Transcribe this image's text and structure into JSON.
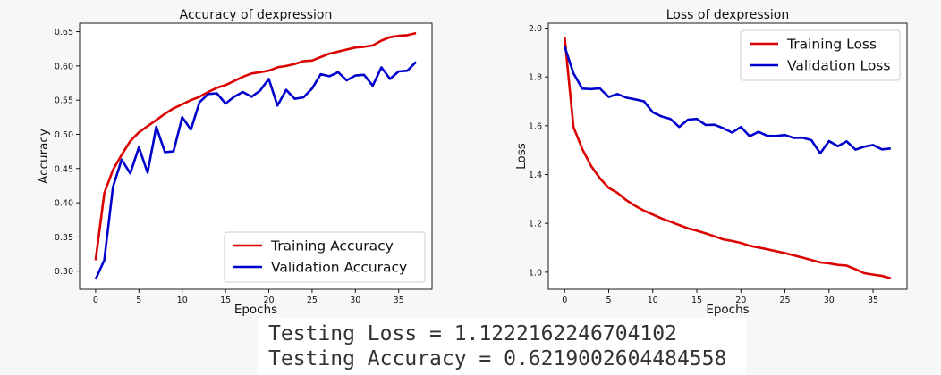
{
  "chart_data": [
    {
      "type": "line",
      "title": "Accuracy of dexpression",
      "xlabel": "Epochs",
      "ylabel": "Accuracy",
      "xlim": [
        -1.85,
        38.85
      ],
      "ylim": [
        0.2735,
        0.6625
      ],
      "x_ticks": [
        0,
        5,
        10,
        15,
        20,
        25,
        30,
        35
      ],
      "y_ticks": [
        0.3,
        0.35,
        0.4,
        0.45,
        0.5,
        0.55,
        0.6,
        0.65
      ],
      "y_tick_labels": [
        "0.30",
        "0.35",
        "0.40",
        "0.45",
        "0.50",
        "0.55",
        "0.60",
        "0.65"
      ],
      "grid": false,
      "legend_position": "lower-right",
      "x": [
        0,
        1,
        2,
        3,
        4,
        5,
        6,
        7,
        8,
        9,
        10,
        11,
        12,
        13,
        14,
        15,
        16,
        17,
        18,
        19,
        20,
        21,
        22,
        23,
        24,
        25,
        26,
        27,
        28,
        29,
        30,
        31,
        32,
        33,
        34,
        35,
        36,
        37
      ],
      "series": [
        {
          "name": "Training Accuracy",
          "color": "#dd0000",
          "values": [
            0.316,
            0.414,
            0.448,
            0.47,
            0.49,
            0.503,
            0.512,
            0.521,
            0.53,
            0.538,
            0.544,
            0.55,
            0.555,
            0.562,
            0.568,
            0.572,
            0.578,
            0.584,
            0.589,
            0.591,
            0.593,
            0.598,
            0.6,
            0.603,
            0.607,
            0.608,
            0.613,
            0.618,
            0.621,
            0.624,
            0.627,
            0.628,
            0.63,
            0.637,
            0.642,
            0.644,
            0.645,
            0.648
          ]
        },
        {
          "name": "Validation Accuracy",
          "color": "#0000cc",
          "values": [
            0.288,
            0.316,
            0.423,
            0.463,
            0.443,
            0.481,
            0.444,
            0.511,
            0.474,
            0.475,
            0.525,
            0.507,
            0.547,
            0.559,
            0.56,
            0.545,
            0.555,
            0.562,
            0.555,
            0.564,
            0.581,
            0.542,
            0.565,
            0.552,
            0.554,
            0.567,
            0.588,
            0.585,
            0.591,
            0.579,
            0.586,
            0.587,
            0.571,
            0.598,
            0.581,
            0.592,
            0.593,
            0.606
          ]
        }
      ]
    },
    {
      "type": "line",
      "title": "Loss of dexpression",
      "xlabel": "Epochs",
      "ylabel": "Loss",
      "xlim": [
        -1.85,
        38.85
      ],
      "ylim": [
        0.93,
        2.02
      ],
      "x_ticks": [
        0,
        5,
        10,
        15,
        20,
        25,
        30,
        35
      ],
      "y_ticks": [
        1.0,
        1.2,
        1.4,
        1.6,
        1.8,
        2.0
      ],
      "y_tick_labels": [
        "1.0",
        "1.2",
        "1.4",
        "1.6",
        "1.8",
        "2.0"
      ],
      "grid": false,
      "legend_position": "upper-right",
      "x": [
        0,
        1,
        2,
        3,
        4,
        5,
        6,
        7,
        8,
        9,
        10,
        11,
        12,
        13,
        14,
        15,
        16,
        17,
        18,
        19,
        20,
        21,
        22,
        23,
        24,
        25,
        26,
        27,
        28,
        29,
        30,
        31,
        32,
        33,
        34,
        35,
        36,
        37
      ],
      "series": [
        {
          "name": "Training Loss",
          "color": "#dd0000",
          "values": [
            1.965,
            1.595,
            1.505,
            1.435,
            1.385,
            1.345,
            1.325,
            1.295,
            1.272,
            1.252,
            1.236,
            1.22,
            1.207,
            1.193,
            1.18,
            1.17,
            1.159,
            1.147,
            1.134,
            1.128,
            1.12,
            1.108,
            1.101,
            1.094,
            1.086,
            1.078,
            1.069,
            1.06,
            1.05,
            1.04,
            1.036,
            1.03,
            1.027,
            1.012,
            0.996,
            0.99,
            0.985,
            0.975
          ]
        },
        {
          "name": "Validation Loss",
          "color": "#0000cc",
          "values": [
            1.925,
            1.815,
            1.752,
            1.75,
            1.753,
            1.718,
            1.73,
            1.715,
            1.708,
            1.7,
            1.655,
            1.638,
            1.628,
            1.595,
            1.625,
            1.628,
            1.603,
            1.604,
            1.59,
            1.572,
            1.595,
            1.557,
            1.575,
            1.559,
            1.558,
            1.562,
            1.55,
            1.551,
            1.541,
            1.487,
            1.537,
            1.516,
            1.536,
            1.502,
            1.514,
            1.521,
            1.503,
            1.507
          ]
        }
      ]
    }
  ],
  "testing": {
    "loss_line": "Testing Loss = 1.1222162246704102",
    "accuracy_line": "Testing Accuracy = 0.6219002604484558"
  }
}
